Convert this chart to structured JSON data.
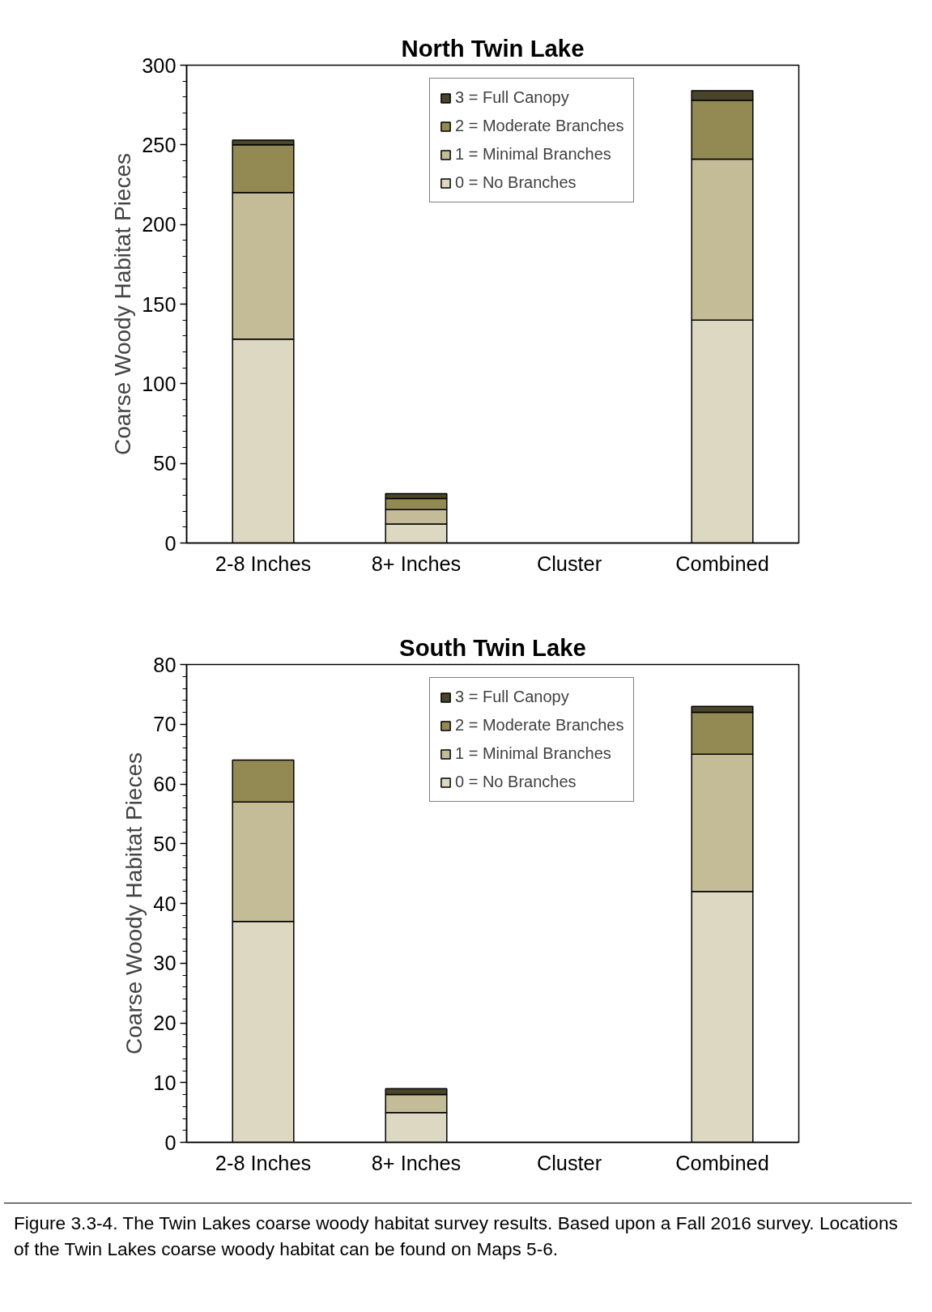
{
  "chart_data": [
    {
      "type": "bar",
      "title": "North Twin Lake",
      "ylabel": "Coarse Woody Habitat Pieces",
      "stacked": true,
      "legend": "top right",
      "categories": [
        "2-8 Inches",
        "8+ Inches",
        "Cluster",
        "Combined"
      ],
      "ylim": [
        0,
        300
      ],
      "yticks": [
        0,
        50,
        100,
        150,
        200,
        250,
        300
      ],
      "grid": false,
      "series": [
        {
          "name": "0 = No Branches",
          "color": "#ddd8c2",
          "values": [
            128,
            12,
            0,
            140
          ]
        },
        {
          "name": "1 = Minimal Branches",
          "color": "#c4bc96",
          "values": [
            92,
            9,
            0,
            101
          ]
        },
        {
          "name": "2 = Moderate Branches",
          "color": "#938953",
          "values": [
            30,
            7,
            0,
            37
          ]
        },
        {
          "name": "3 = Full Canopy",
          "color": "#4a452a",
          "values": [
            3,
            3,
            0,
            6
          ]
        }
      ]
    },
    {
      "type": "bar",
      "title": "South Twin Lake",
      "ylabel": "Coarse Woody Habitat Pieces",
      "stacked": true,
      "legend": "top right",
      "categories": [
        "2-8 Inches",
        "8+ Inches",
        "Cluster",
        "Combined"
      ],
      "ylim": [
        0,
        80
      ],
      "yticks": [
        0,
        10,
        20,
        30,
        40,
        50,
        60,
        70,
        80
      ],
      "grid": false,
      "annotations": [
        "Figure 3.3-4. The Twin Lakes coarse woody habitat survey results. Based upon a Fall 2016 survey. Locations of the Twin Lakes coarse woody habitat can be found on Maps 5-6."
      ],
      "series": [
        {
          "name": "0 = No Branches",
          "color": "#ddd8c2",
          "values": [
            37,
            5,
            0,
            42
          ]
        },
        {
          "name": "1 = Minimal Branches",
          "color": "#c4bc96",
          "values": [
            20,
            3,
            0,
            23
          ]
        },
        {
          "name": "2 = Moderate Branches",
          "color": "#938953",
          "values": [
            7,
            0,
            0,
            7
          ]
        },
        {
          "name": "3 = Full Canopy",
          "color": "#4a452a",
          "values": [
            0,
            1,
            0,
            1
          ]
        }
      ]
    }
  ]
}
